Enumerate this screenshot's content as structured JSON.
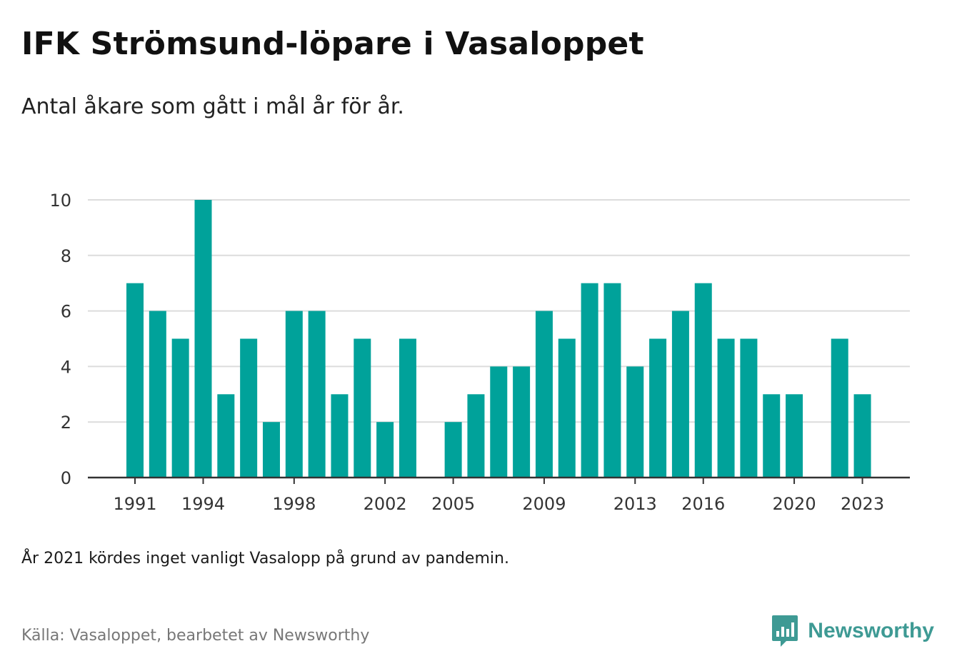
{
  "title": "IFK Strömsund-löpare i Vasaloppet",
  "subtitle": "Antal åkare som gått i mål år för år.",
  "note": "År 2021 kördes inget vanligt Vasalopp på grund av pandemin.",
  "source": "Källa: Vasaloppet, bearbetet av Newsworthy",
  "brand": "Newsworthy",
  "colors": {
    "bar": "#00a29a",
    "grid": "#dcdcdc",
    "axis": "#333333",
    "brand": "#3e9a94"
  },
  "chart_data": {
    "type": "bar",
    "x": [
      1991,
      1992,
      1993,
      1994,
      1995,
      1996,
      1997,
      1998,
      1999,
      2000,
      2001,
      2002,
      2003,
      2004,
      2005,
      2006,
      2007,
      2008,
      2009,
      2010,
      2011,
      2012,
      2013,
      2014,
      2015,
      2016,
      2017,
      2018,
      2019,
      2020,
      2021,
      2022,
      2023
    ],
    "values": [
      7,
      6,
      5,
      10,
      3,
      5,
      2,
      6,
      6,
      3,
      5,
      2,
      5,
      null,
      2,
      3,
      4,
      4,
      6,
      5,
      7,
      7,
      4,
      5,
      6,
      7,
      5,
      5,
      3,
      3,
      null,
      5,
      3
    ],
    "xticks": [
      "1991",
      "1994",
      "1998",
      "2002",
      "2005",
      "2009",
      "2013",
      "2016",
      "2020",
      "2023"
    ],
    "yticks": [
      "0",
      "2",
      "4",
      "6",
      "8",
      "10"
    ],
    "ylim": [
      0,
      10
    ],
    "grid": true,
    "xlabel": "",
    "ylabel": ""
  }
}
